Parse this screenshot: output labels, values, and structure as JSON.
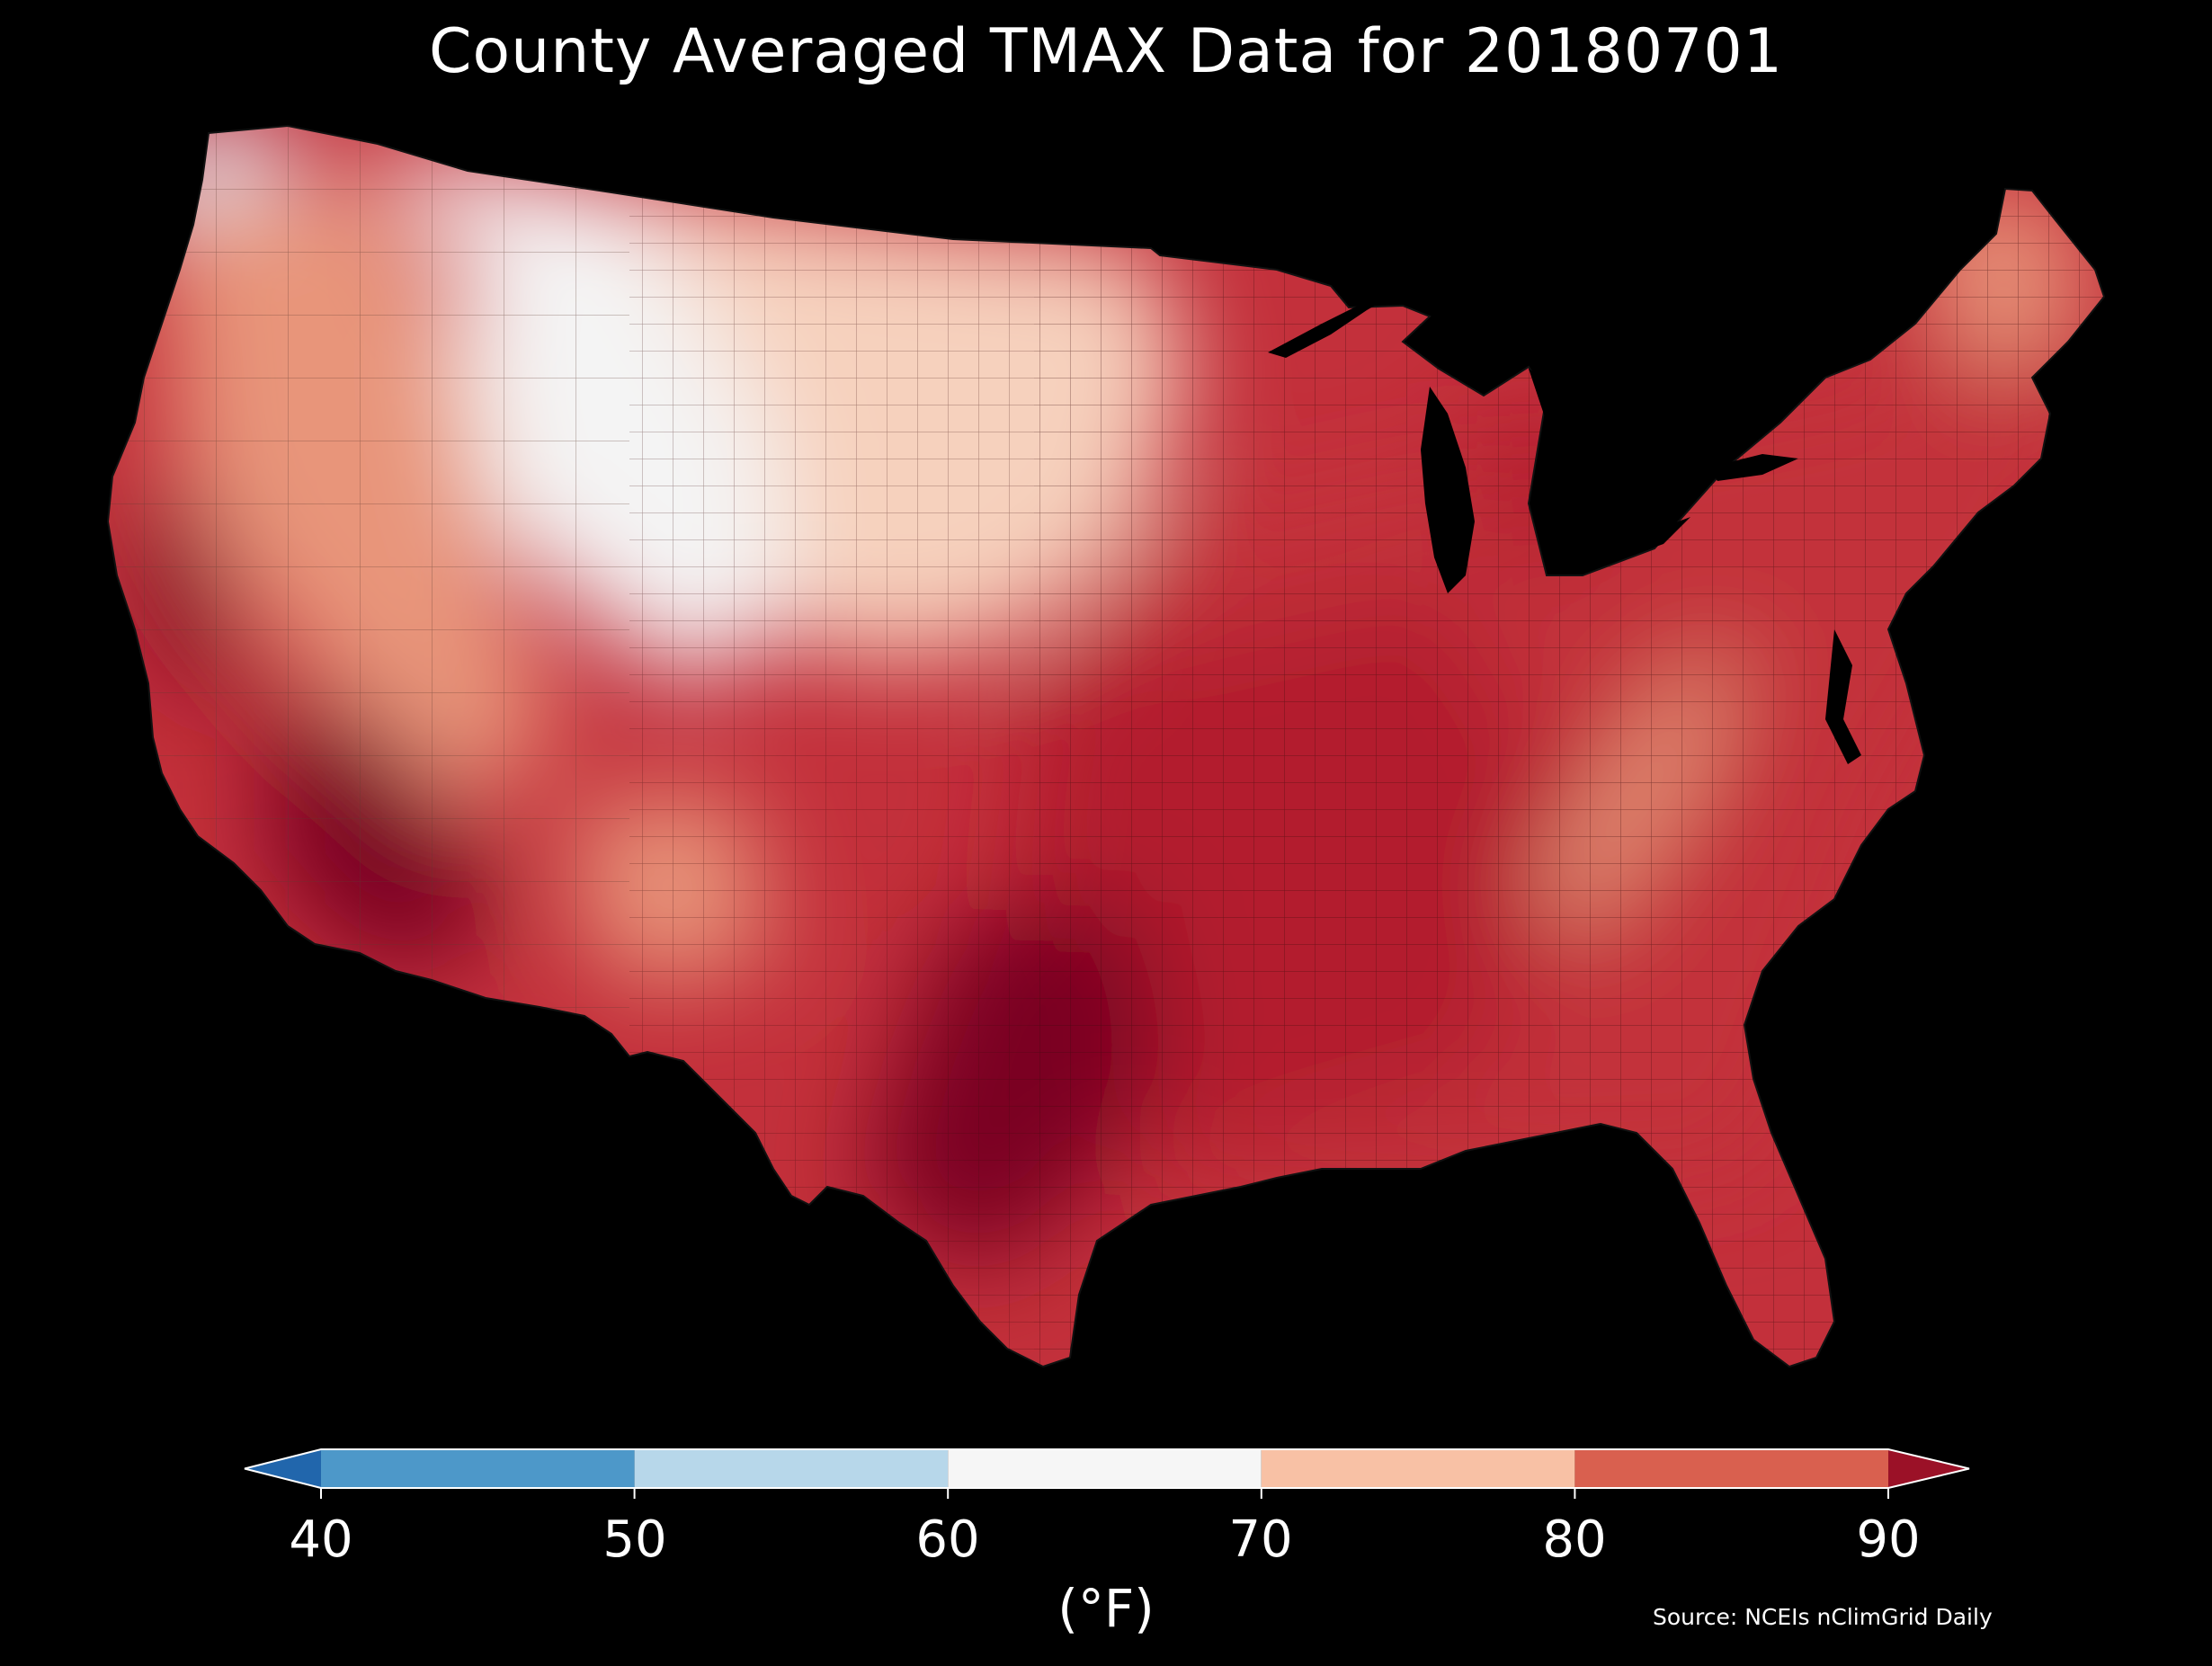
{
  "title": "County Averaged TMAX Data for 20180701",
  "source": "Source: NCEIs nClimGrid Daily",
  "colorbar": {
    "unit": "(°F)",
    "ticks": [
      "40",
      "50",
      "60",
      "70",
      "80",
      "90"
    ],
    "under_color": "#2166ac",
    "over_color": "#9b1127",
    "bins": [
      {
        "range": [
          40,
          50
        ],
        "color": "#4d98c9"
      },
      {
        "range": [
          50,
          60
        ],
        "color": "#b7d7ea"
      },
      {
        "range": [
          60,
          70
        ],
        "color": "#f6f6f6"
      },
      {
        "range": [
          70,
          80
        ],
        "color": "#f8c1a5"
      },
      {
        "range": [
          80,
          90
        ],
        "color": "#d9604f"
      }
    ]
  },
  "map": {
    "region": "Contiguous United States",
    "background": "#000000",
    "fill_colors": {
      "cold": "#dce9f3",
      "cool": "#f4f4f4",
      "mild": "#f6d1bd",
      "warm": "#e8957a",
      "hot": "#c3303b",
      "very_hot": "#b31f2e",
      "extreme": "#7a0620"
    }
  }
}
